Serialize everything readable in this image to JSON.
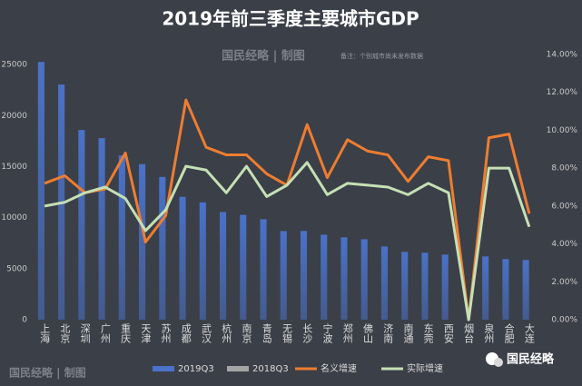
{
  "chart_data": {
    "type": "bar",
    "title": "2019年前三季度主要城市GDP",
    "subtitle": "国民经略 | 制图",
    "note": "备注：个别城市尚未发布数据",
    "categories": [
      "上海",
      "北京",
      "深圳",
      "广州",
      "重庆",
      "天津",
      "苏州",
      "成都",
      "武汉",
      "杭州",
      "南京",
      "青岛",
      "无锡",
      "长沙",
      "宁波",
      "郑州",
      "佛山",
      "济南",
      "南通",
      "东莞",
      "西安",
      "烟台",
      "泉州",
      "合肥",
      "大连"
    ],
    "series": [
      {
        "name": "2019Q3",
        "type": "bar",
        "color": "#4a72c8",
        "values": [
          25269,
          23050,
          18600,
          17800,
          16100,
          15250,
          14000,
          12050,
          11500,
          10550,
          10280,
          9850,
          8690,
          8700,
          8330,
          8070,
          7890,
          7180,
          6650,
          6560,
          6380,
          0,
          6200,
          5940,
          5850
        ]
      },
      {
        "name": "2018Q3",
        "type": "bar",
        "color": "#a5a5a5",
        "values": [
          null,
          null,
          null,
          null,
          null,
          null,
          null,
          null,
          null,
          null,
          null,
          null,
          null,
          null,
          null,
          null,
          null,
          null,
          null,
          null,
          null,
          null,
          null,
          null,
          null
        ]
      },
      {
        "name": "名义增速",
        "type": "line",
        "axis": "y2",
        "color": "#ed7d31",
        "values": [
          7.2,
          7.6,
          6.7,
          6.9,
          8.8,
          4.1,
          5.5,
          11.6,
          9.1,
          8.7,
          8.7,
          7.7,
          7.1,
          10.3,
          7.5,
          9.5,
          8.9,
          8.7,
          7.3,
          8.6,
          8.4,
          0,
          9.6,
          9.8,
          5.6
        ]
      },
      {
        "name": "实际增速",
        "type": "line",
        "axis": "y2",
        "color": "#c5e0b4",
        "values": [
          6.0,
          6.2,
          6.7,
          7.0,
          6.4,
          4.7,
          5.8,
          8.1,
          7.9,
          6.7,
          8.1,
          6.5,
          7.1,
          8.3,
          6.6,
          7.2,
          7.1,
          7.0,
          6.6,
          7.2,
          6.7,
          0,
          8.0,
          8.0,
          4.9
        ]
      }
    ],
    "ylim": [
      0,
      26000
    ],
    "yticks": [
      0,
      5000,
      10000,
      15000,
      20000,
      25000
    ],
    "y2lim": [
      0,
      14
    ],
    "y2ticks": [
      {
        "value": 0,
        "label": "0.00%"
      },
      {
        "value": 2,
        "label": "2.00%"
      },
      {
        "value": 4,
        "label": "4.00%"
      },
      {
        "value": 6,
        "label": "6.00%"
      },
      {
        "value": 8,
        "label": "8.00%"
      },
      {
        "value": 10,
        "label": "10.00%"
      },
      {
        "value": 12,
        "label": "12.00%"
      },
      {
        "value": 14,
        "label": "14.00%"
      }
    ],
    "grid": false
  },
  "footer": {
    "left": "国民经略 | 制图",
    "right": "国民经略"
  }
}
